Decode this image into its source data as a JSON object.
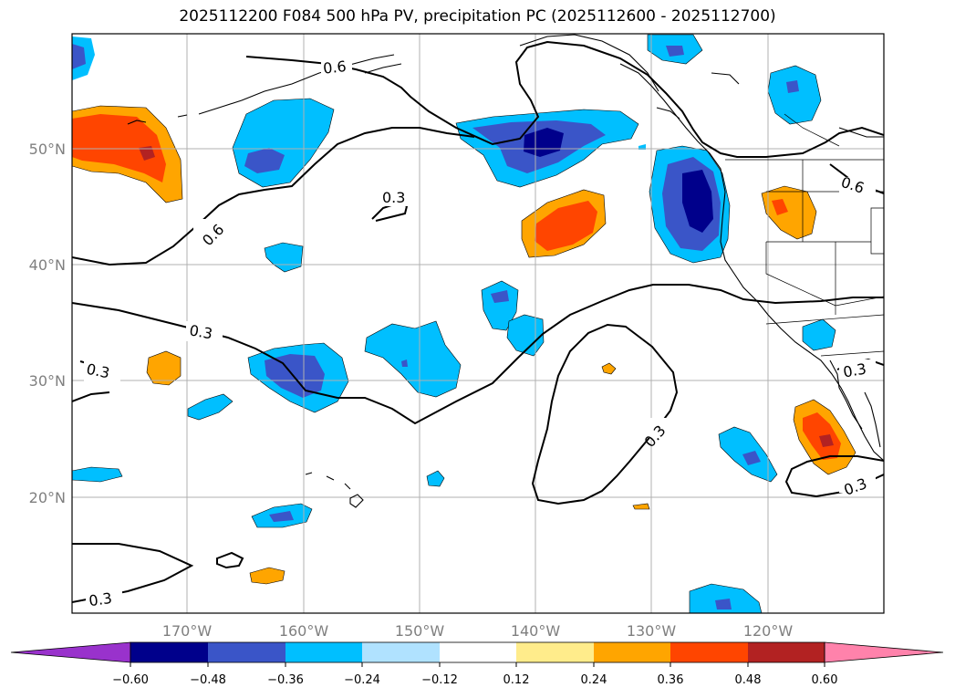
{
  "title": "2025112200 F084 500 hPa PV, precipitation PC (2025112600 - 2025112700)",
  "lat_ticks": [
    "50°N",
    "40°N",
    "30°N",
    "20°N"
  ],
  "lon_ticks": [
    "170°W",
    "160°W",
    "150°W",
    "140°W",
    "130°W",
    "120°W"
  ],
  "colorbar": {
    "labels": [
      "−0.60",
      "−0.48",
      "−0.36",
      "−0.24",
      "−0.12",
      "0.12",
      "0.24",
      "0.36",
      "0.48",
      "0.60"
    ],
    "colors": [
      "#9932cc",
      "#00008b",
      "#3a55c8",
      "#00bfff",
      "#b0e2ff",
      "#ffffff",
      "#ffec8b",
      "#ffa500",
      "#ff4500",
      "#b22222",
      "#ff82ab"
    ]
  },
  "contour_labels": [
    {
      "id": "a",
      "text": "0.6"
    },
    {
      "id": "b",
      "text": "0.3"
    },
    {
      "id": "c",
      "text": "0.6"
    },
    {
      "id": "d",
      "text": "0.3"
    },
    {
      "id": "e",
      "text": "0.3"
    },
    {
      "id": "f",
      "text": "0.3"
    },
    {
      "id": "g",
      "text": "0.6"
    },
    {
      "id": "h",
      "text": "0.3"
    },
    {
      "id": "i",
      "text": "0.3"
    },
    {
      "id": "j",
      "text": "0.3"
    }
  ],
  "colors": {
    "grid": "#b0b0b0",
    "coast": "#000000",
    "tick_label": "#7f7f7f"
  }
}
